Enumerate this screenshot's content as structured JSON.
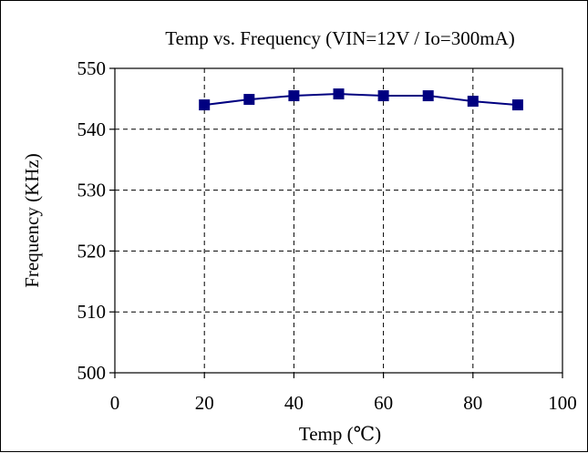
{
  "chart_data": {
    "type": "line",
    "title": "Temp vs. Frequency (VIN=12V / Io=300mA)",
    "xlabel": "Temp (℃)",
    "ylabel": "Frequency (KHz)",
    "xlim": [
      0,
      100
    ],
    "ylim": [
      500,
      550
    ],
    "xticks": [
      0,
      20,
      40,
      60,
      80,
      100
    ],
    "yticks": [
      500,
      510,
      520,
      530,
      540,
      550
    ],
    "grid": true,
    "legend": "none",
    "series": [
      {
        "color": "#000080",
        "marker": "square",
        "x": [
          20,
          30,
          40,
          50,
          60,
          70,
          80,
          90
        ],
        "y": [
          544.0,
          544.9,
          545.5,
          545.8,
          545.5,
          545.5,
          544.6,
          544.0
        ]
      }
    ]
  }
}
